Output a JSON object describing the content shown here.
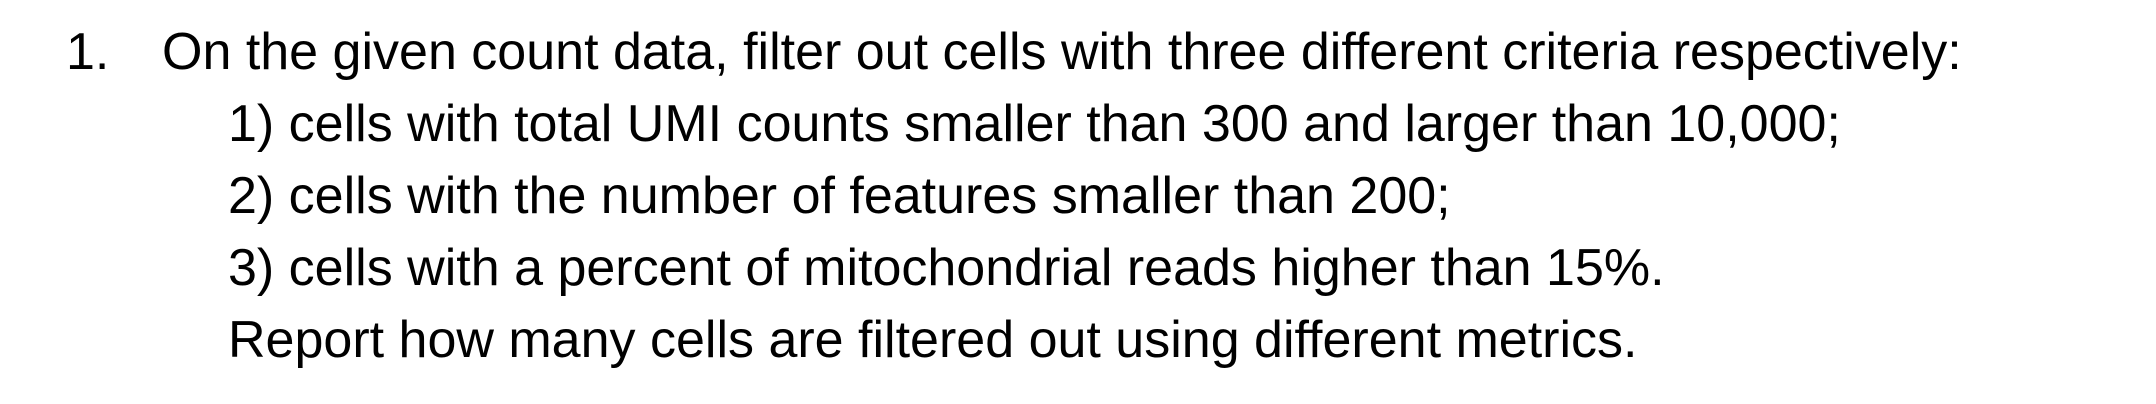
{
  "item": {
    "number": "1.",
    "intro": "On the given count data, filter out cells with three different criteria respectively:",
    "criteria": [
      "1) cells with total UMI counts smaller than 300 and larger than 10,000;",
      "2) cells with the number of features smaller than 200;",
      "3) cells with a percent of mitochondrial reads higher than 15%."
    ],
    "report": "Report how many cells are filtered out using different metrics."
  }
}
